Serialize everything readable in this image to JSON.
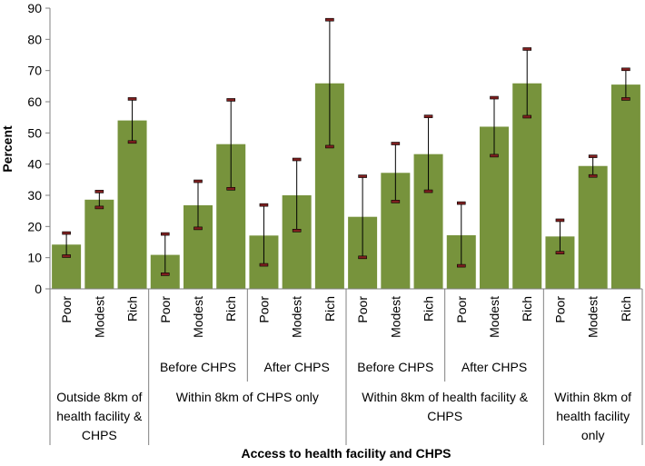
{
  "chart_data": {
    "type": "bar",
    "title": "",
    "xlabel": "Access to health facility and CHPS",
    "ylabel": "Percent",
    "ylim": [
      0,
      90
    ],
    "yticks": [
      0,
      10,
      20,
      30,
      40,
      50,
      60,
      70,
      80,
      90
    ],
    "grid": false,
    "legend": "none",
    "bar_color": "#77933C",
    "error_bar_color": "#000000",
    "error_cap_color": "#7F1F1F",
    "categories": [
      "Poor",
      "Modest",
      "Rich",
      "Poor",
      "Modest",
      "Rich",
      "Poor",
      "Modest",
      "Rich",
      "Poor",
      "Modest",
      "Rich",
      "Poor",
      "Modest",
      "Rich",
      "Poor",
      "Modest",
      "Rich"
    ],
    "values": [
      14.2,
      28.6,
      54.0,
      10.9,
      26.8,
      46.4,
      17.1,
      30.0,
      65.9,
      23.1,
      37.2,
      43.2,
      17.2,
      52.0,
      65.9,
      16.8,
      39.4,
      65.5
    ],
    "error_low": [
      10.5,
      26.1,
      47.1,
      4.7,
      19.4,
      32.1,
      7.7,
      18.7,
      45.6,
      10.1,
      28.0,
      31.3,
      7.4,
      42.7,
      55.2,
      11.6,
      36.2,
      60.9
    ],
    "error_high": [
      17.9,
      31.2,
      60.9,
      17.6,
      34.5,
      60.6,
      26.9,
      41.5,
      86.3,
      36.1,
      46.6,
      55.3,
      27.5,
      61.3,
      76.9,
      22.0,
      42.5,
      70.4
    ],
    "subgroups": [
      "",
      "Before CHPS",
      "After CHPS",
      "Before CHPS",
      "After CHPS",
      ""
    ],
    "groups": [
      {
        "label": [
          "Outside 8km of",
          "health facility &",
          "CHPS"
        ],
        "span": 3
      },
      {
        "label": [
          "Within 8km of CHPS only"
        ],
        "span": 6
      },
      {
        "label": [
          "Within 8km of health facility &",
          "CHPS"
        ],
        "span": 6
      },
      {
        "label": [
          "Within 8km of",
          "health facility",
          "only"
        ],
        "span": 3
      }
    ]
  }
}
